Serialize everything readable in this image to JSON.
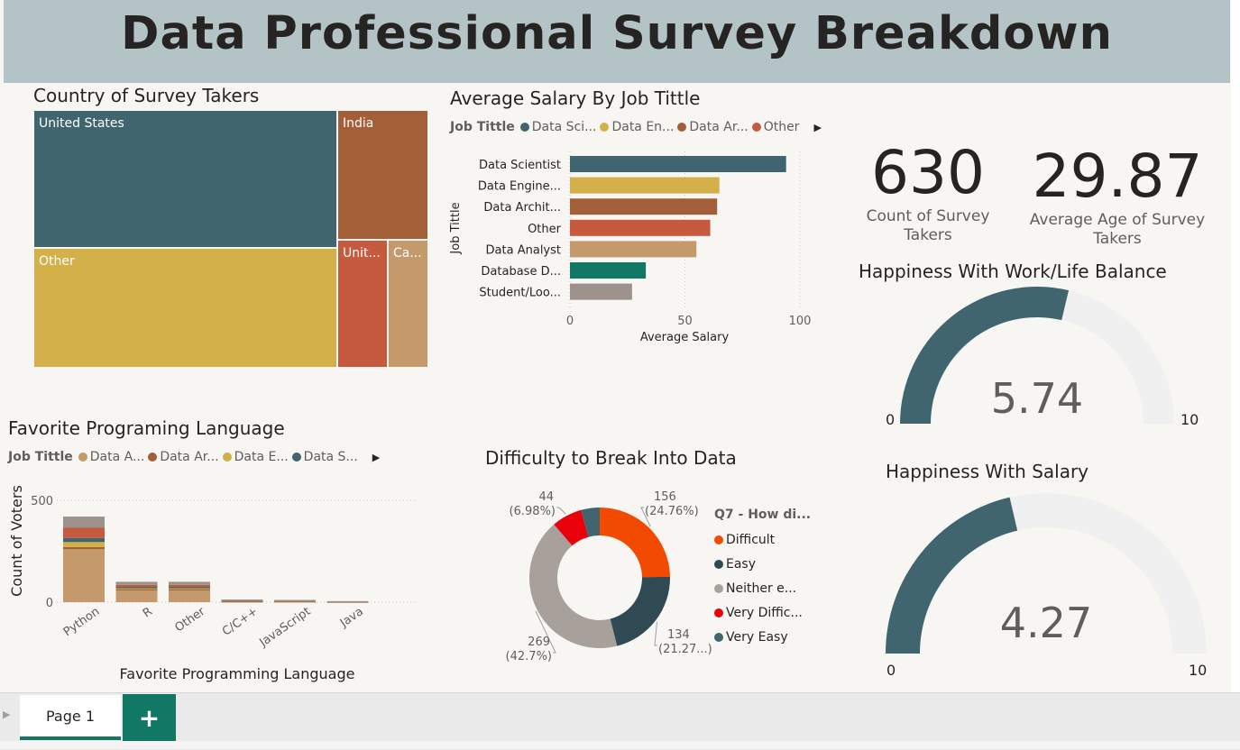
{
  "header": {
    "title": "Data Professional Survey Breakdown"
  },
  "country": {
    "title": "Country of Survey Takers",
    "cells": [
      {
        "label": "United States",
        "color": "#41656f"
      },
      {
        "label": "Other",
        "color": "#d3b04a"
      },
      {
        "label": "India",
        "color": "#a35f37"
      },
      {
        "label": "Unit...",
        "color": "#c55a3f"
      },
      {
        "label": "Ca...",
        "color": "#c49a6c"
      }
    ]
  },
  "salary": {
    "title": "Average Salary By Job Tittle",
    "legend_title": "Job Tittle",
    "legend_items": [
      {
        "label": "Data Sci...",
        "color": "#41656f"
      },
      {
        "label": "Data En...",
        "color": "#d3b04a"
      },
      {
        "label": "Data Ar...",
        "color": "#a35f37"
      },
      {
        "label": "Other",
        "color": "#c55a3f"
      }
    ],
    "legend_arrow": "▶",
    "y_axis_label": "Job Tittle",
    "x_axis_label": "Average Salary"
  },
  "language": {
    "title": "Favorite Programing Language",
    "legend_title": "Job Tittle",
    "legend_items": [
      {
        "label": "Data A...",
        "color": "#c49a6c"
      },
      {
        "label": "Data Ar...",
        "color": "#a35f37"
      },
      {
        "label": "Data E...",
        "color": "#d3b04a"
      },
      {
        "label": "Data S...",
        "color": "#41656f"
      }
    ],
    "legend_arrow": "▶",
    "y_axis_label": "Count of Voters",
    "x_axis_label": "Favorite Programming Language"
  },
  "difficulty": {
    "title": "Difficulty to Break Into Data",
    "legend_title": "Q7 - How di...",
    "legend_items": [
      {
        "label": "Difficult",
        "color": "#f24a00"
      },
      {
        "label": "Easy",
        "color": "#2f4a53"
      },
      {
        "label": "Neither e...",
        "color": "#a8a19b"
      },
      {
        "label": "Very Diffic...",
        "color": "#e8000b"
      },
      {
        "label": "Very Easy",
        "color": "#41656f"
      }
    ]
  },
  "cards": {
    "count": {
      "value": "630",
      "label": "Count of Survey Takers"
    },
    "age": {
      "value": "29.87",
      "label": "Average Age of Survey Takers"
    }
  },
  "gauges": {
    "worklife": {
      "title": "Happiness With Work/Life Balance",
      "value": 5.74,
      "value_text": "5.74",
      "min": "0",
      "max": "10"
    },
    "salary": {
      "title": "Happiness With Salary",
      "value": 4.27,
      "value_text": "4.27",
      "min": "0",
      "max": "10"
    },
    "fill_color": "#41656f",
    "track_color": "#f0f0f0"
  },
  "tabs": {
    "page1": "Page 1",
    "add": "+"
  },
  "chart_data": [
    {
      "type": "treemap",
      "title": "Country of Survey Takers",
      "categories": [
        "United States",
        "Other",
        "India",
        "United Kingdom",
        "Canada"
      ],
      "values": [
        262,
        201,
        76,
        48,
        43
      ]
    },
    {
      "type": "bar",
      "orientation": "horizontal",
      "title": "Average Salary By Job Tittle",
      "categories": [
        "Data Scientist",
        "Data Engine...",
        "Data Archit...",
        "Other",
        "Data Analyst",
        "Database D...",
        "Student/Loo..."
      ],
      "category_labels": [
        "Data Scientist",
        "Data Engine...",
        "Data Archit...",
        "Other",
        "Data Analyst",
        "Database D...",
        "Student/Loo..."
      ],
      "values": [
        94,
        65,
        64,
        61,
        55,
        33,
        27
      ],
      "colors": [
        "#41656f",
        "#d3b04a",
        "#a35f37",
        "#c55a3f",
        "#c49a6c",
        "#117865",
        "#9c918b"
      ],
      "xlabel": "Average Salary",
      "ylabel": "Job Tittle",
      "xlim": [
        0,
        100
      ],
      "xticks": [
        "0",
        "50",
        "100"
      ],
      "grid": true
    },
    {
      "type": "bar",
      "stacked": true,
      "title": "Favorite Programing Language",
      "categories": [
        "Python",
        "R",
        "Other",
        "C/C++",
        "JavaScript",
        "Java"
      ],
      "series": [
        {
          "name": "Data A...",
          "color": "#c49a6c",
          "values": [
            260,
            60,
            60,
            5,
            5,
            3
          ]
        },
        {
          "name": "Data Ar...",
          "color": "#a35f37",
          "values": [
            10,
            5,
            5,
            1,
            1,
            0
          ]
        },
        {
          "name": "Data E...",
          "color": "#d3b04a",
          "values": [
            25,
            5,
            5,
            1,
            1,
            0
          ]
        },
        {
          "name": "Data S...",
          "color": "#41656f",
          "values": [
            20,
            5,
            5,
            1,
            1,
            0
          ]
        },
        {
          "name": "",
          "color": "#c55a3f",
          "values": [
            50,
            10,
            10,
            2,
            1,
            1
          ]
        },
        {
          "name": "",
          "color": "#9c918b",
          "values": [
            55,
            15,
            15,
            3,
            2,
            1
          ]
        }
      ],
      "xlabel": "Favorite Programming Language",
      "ylabel": "Count of Voters",
      "ylim": [
        0,
        560
      ],
      "yticks": [
        "0",
        "500"
      ]
    },
    {
      "type": "pie",
      "donut": true,
      "title": "Difficulty to Break Into Data",
      "categories": [
        "Difficult",
        "Easy",
        "Neither e...",
        "Very Diffic...",
        "Very Easy"
      ],
      "values": [
        156,
        134,
        269,
        44,
        27
      ],
      "colors": [
        "#f24a00",
        "#2f4a53",
        "#a8a19b",
        "#e8000b",
        "#41656f"
      ],
      "labels": [
        {
          "value": "156",
          "percent": "(24.76%)"
        },
        {
          "value": "134",
          "percent": "(21.27...)"
        },
        {
          "value": "269",
          "percent": "(42.7%)"
        },
        {
          "value": "44",
          "percent": "(6.98%)"
        }
      ]
    }
  ]
}
